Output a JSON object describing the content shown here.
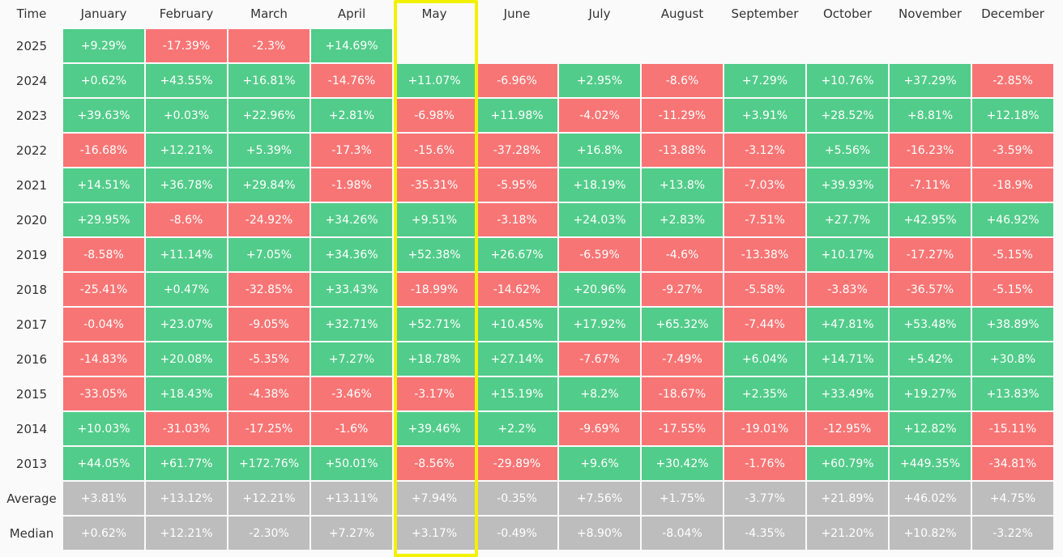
{
  "table": {
    "header": [
      "Time",
      "January",
      "February",
      "March",
      "April",
      "May",
      "June",
      "July",
      "August",
      "September",
      "October",
      "November",
      "December"
    ],
    "rows": [
      {
        "label": "2025",
        "cells": [
          "+9.29%",
          "-17.39%",
          "-2.3%",
          "+14.69%",
          null,
          null,
          null,
          null,
          null,
          null,
          null,
          null
        ]
      },
      {
        "label": "2024",
        "cells": [
          "+0.62%",
          "+43.55%",
          "+16.81%",
          "-14.76%",
          "+11.07%",
          "-6.96%",
          "+2.95%",
          "-8.6%",
          "+7.29%",
          "+10.76%",
          "+37.29%",
          "-2.85%"
        ]
      },
      {
        "label": "2023",
        "cells": [
          "+39.63%",
          "+0.03%",
          "+22.96%",
          "+2.81%",
          "-6.98%",
          "+11.98%",
          "-4.02%",
          "-11.29%",
          "+3.91%",
          "+28.52%",
          "+8.81%",
          "+12.18%"
        ]
      },
      {
        "label": "2022",
        "cells": [
          "-16.68%",
          "+12.21%",
          "+5.39%",
          "-17.3%",
          "-15.6%",
          "-37.28%",
          "+16.8%",
          "-13.88%",
          "-3.12%",
          "+5.56%",
          "-16.23%",
          "-3.59%"
        ]
      },
      {
        "label": "2021",
        "cells": [
          "+14.51%",
          "+36.78%",
          "+29.84%",
          "-1.98%",
          "-35.31%",
          "-5.95%",
          "+18.19%",
          "+13.8%",
          "-7.03%",
          "+39.93%",
          "-7.11%",
          "-18.9%"
        ]
      },
      {
        "label": "2020",
        "cells": [
          "+29.95%",
          "-8.6%",
          "-24.92%",
          "+34.26%",
          "+9.51%",
          "-3.18%",
          "+24.03%",
          "+2.83%",
          "-7.51%",
          "+27.7%",
          "+42.95%",
          "+46.92%"
        ]
      },
      {
        "label": "2019",
        "cells": [
          "-8.58%",
          "+11.14%",
          "+7.05%",
          "+34.36%",
          "+52.38%",
          "+26.67%",
          "-6.59%",
          "-4.6%",
          "-13.38%",
          "+10.17%",
          "-17.27%",
          "-5.15%"
        ]
      },
      {
        "label": "2018",
        "cells": [
          "-25.41%",
          "+0.47%",
          "-32.85%",
          "+33.43%",
          "-18.99%",
          "-14.62%",
          "+20.96%",
          "-9.27%",
          "-5.58%",
          "-3.83%",
          "-36.57%",
          "-5.15%"
        ]
      },
      {
        "label": "2017",
        "cells": [
          "-0.04%",
          "+23.07%",
          "-9.05%",
          "+32.71%",
          "+52.71%",
          "+10.45%",
          "+17.92%",
          "+65.32%",
          "-7.44%",
          "+47.81%",
          "+53.48%",
          "+38.89%"
        ]
      },
      {
        "label": "2016",
        "cells": [
          "-14.83%",
          "+20.08%",
          "-5.35%",
          "+7.27%",
          "+18.78%",
          "+27.14%",
          "-7.67%",
          "-7.49%",
          "+6.04%",
          "+14.71%",
          "+5.42%",
          "+30.8%"
        ]
      },
      {
        "label": "2015",
        "cells": [
          "-33.05%",
          "+18.43%",
          "-4.38%",
          "-3.46%",
          "-3.17%",
          "+15.19%",
          "+8.2%",
          "-18.67%",
          "+2.35%",
          "+33.49%",
          "+19.27%",
          "+13.83%"
        ]
      },
      {
        "label": "2014",
        "cells": [
          "+10.03%",
          "-31.03%",
          "-17.25%",
          "-1.6%",
          "+39.46%",
          "+2.2%",
          "-9.69%",
          "-17.55%",
          "-19.01%",
          "-12.95%",
          "+12.82%",
          "-15.11%"
        ]
      },
      {
        "label": "2013",
        "cells": [
          "+44.05%",
          "+61.77%",
          "+172.76%",
          "+50.01%",
          "-8.56%",
          "-29.89%",
          "+9.6%",
          "+30.42%",
          "-1.76%",
          "+60.79%",
          "+449.35%",
          "-34.81%"
        ]
      }
    ],
    "summary_rows": [
      {
        "label": "Average",
        "cells": [
          "+3.81%",
          "+13.12%",
          "+12.21%",
          "+13.11%",
          "+7.94%",
          "-0.35%",
          "+7.56%",
          "+1.75%",
          "-3.77%",
          "+21.89%",
          "+46.02%",
          "+4.75%"
        ]
      },
      {
        "label": "Median",
        "cells": [
          "+0.62%",
          "+12.21%",
          "-2.30%",
          "+7.27%",
          "+3.17%",
          "-0.49%",
          "+8.90%",
          "-8.04%",
          "-4.35%",
          "+21.20%",
          "+10.82%",
          "-3.22%"
        ]
      }
    ],
    "colors": {
      "positive": "#52cc8a",
      "negative": "#f87575",
      "summary": "#bdbdbd"
    }
  }
}
